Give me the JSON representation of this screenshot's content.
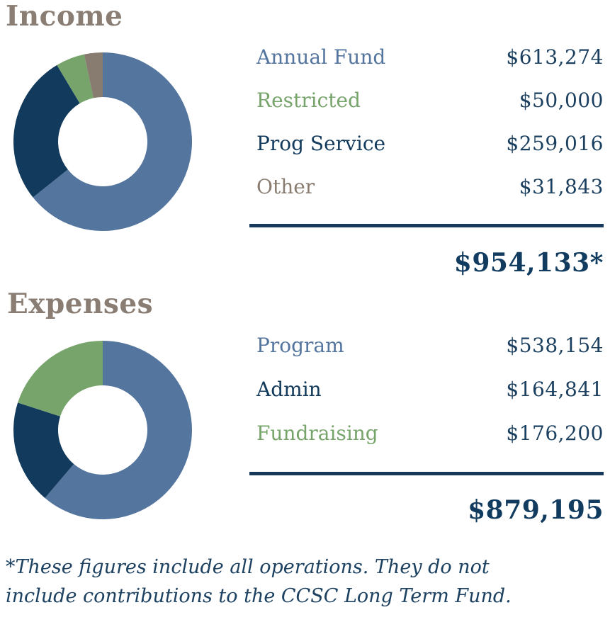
{
  "theme": {
    "background": "#ffffff",
    "title_color": "#8A7D73",
    "value_color": "#1B3F5F",
    "total_color": "#123C5F",
    "divider_color": "#17395C",
    "footnote_color": "#1D4161"
  },
  "chart_data": [
    {
      "type": "pie",
      "donut": true,
      "title": "Income",
      "start_angle_deg": 0,
      "direction": "clockwise",
      "segments": [
        {
          "label": "Annual Fund",
          "value": 613274,
          "display": "$613,274",
          "color": "#54759E"
        },
        {
          "label": "Restricted",
          "value": 50000,
          "display": "$50,000",
          "color": "#77A46B"
        },
        {
          "label": "Prog Service",
          "value": 259016,
          "display": "$259,016",
          "color": "#123A5C"
        },
        {
          "label": "Other",
          "value": 31843,
          "display": "$31,843",
          "color": "#887C71"
        }
      ],
      "draw_order": [
        0,
        2,
        1,
        3
      ],
      "total_value": 954133,
      "total_display": "$954,133*"
    },
    {
      "type": "pie",
      "donut": true,
      "title": "Expenses",
      "start_angle_deg": 0,
      "direction": "clockwise",
      "segments": [
        {
          "label": "Program",
          "value": 538154,
          "display": "$538,154",
          "color": "#54759E"
        },
        {
          "label": "Admin",
          "value": 164841,
          "display": "$164,841",
          "color": "#123A5C"
        },
        {
          "label": "Fundraising",
          "value": 176200,
          "display": "$176,200",
          "color": "#77A46B"
        }
      ],
      "draw_order": [
        0,
        1,
        2
      ],
      "total_value": 879195,
      "total_display": "$879,195"
    }
  ],
  "footnote": {
    "text": "*These figures include all operations. They do not include contributions to the CCSC Long Term Fund."
  }
}
